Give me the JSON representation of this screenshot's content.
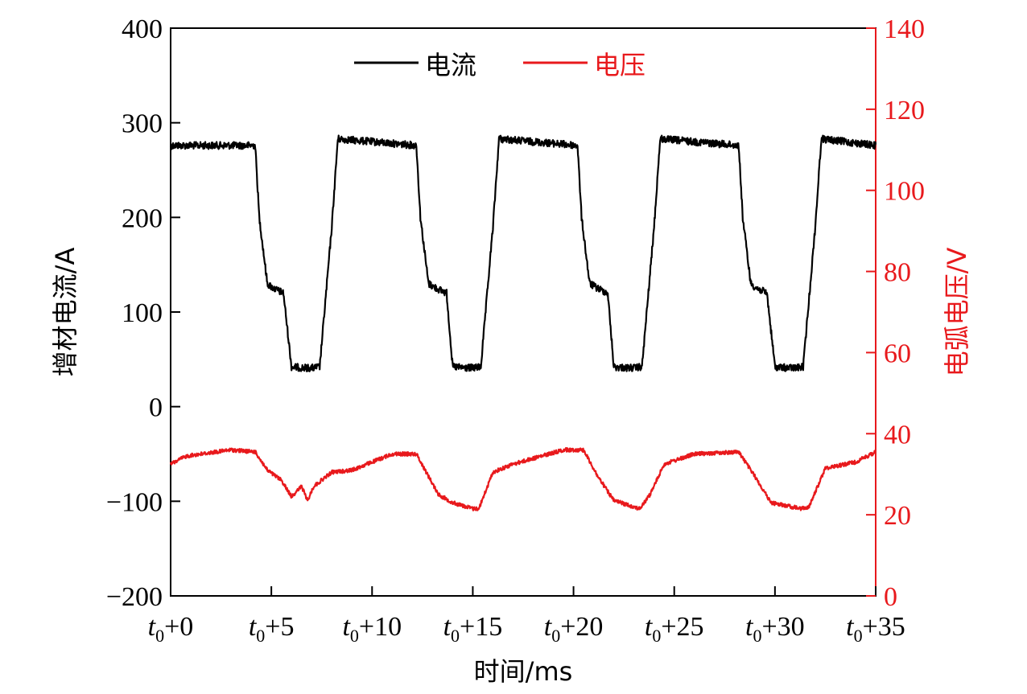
{
  "chart_data": {
    "type": "line",
    "title": "",
    "xlabel": "时间/ms",
    "ylabel_left": "增材电流/A",
    "ylabel_right": "电弧电压/V",
    "xlim": [
      0,
      35
    ],
    "ylim_left": [
      -200,
      400
    ],
    "ylim_right": [
      0,
      140
    ],
    "x_ticks": [
      0,
      5,
      10,
      15,
      20,
      25,
      30,
      35
    ],
    "x_tick_labels": [
      {
        "base": "t",
        "sub": "0",
        "suffix": "+0"
      },
      {
        "base": "t",
        "sub": "0",
        "suffix": "+5"
      },
      {
        "base": "t",
        "sub": "0",
        "suffix": "+10"
      },
      {
        "base": "t",
        "sub": "0",
        "suffix": "+15"
      },
      {
        "base": "t",
        "sub": "0",
        "suffix": "+20"
      },
      {
        "base": "t",
        "sub": "0",
        "suffix": "+25"
      },
      {
        "base": "t",
        "sub": "0",
        "suffix": "+30"
      },
      {
        "base": "t",
        "sub": "0",
        "suffix": "+35"
      }
    ],
    "y_ticks_left": [
      -200,
      -100,
      0,
      100,
      200,
      300,
      400
    ],
    "y_tick_labels_left": [
      "−200",
      "−100",
      "0",
      "100",
      "200",
      "300",
      "400"
    ],
    "y_ticks_right": [
      0,
      20,
      40,
      60,
      80,
      100,
      120,
      140
    ],
    "y_tick_labels_right": [
      "0",
      "20",
      "40",
      "60",
      "80",
      "100",
      "120",
      "140"
    ],
    "grid": false,
    "legend_position": "top-center",
    "series": [
      {
        "name": "电流",
        "axis": "left",
        "color": "#000000",
        "x": [
          0,
          4.2,
          4.4,
          4.8,
          5.1,
          5.6,
          6.0,
          6.6,
          7.1,
          7.4,
          8.0,
          8.3,
          12.2,
          12.4,
          12.8,
          13.2,
          13.7,
          14.0,
          14.6,
          15.1,
          15.4,
          16.0,
          16.3,
          20.2,
          20.4,
          20.8,
          21.2,
          21.7,
          22.0,
          22.6,
          23.1,
          23.4,
          24.0,
          24.3,
          28.2,
          28.4,
          28.8,
          29.1,
          29.6,
          30.0,
          30.6,
          31.1,
          31.4,
          32.0,
          32.3,
          35
        ],
        "y": [
          276,
          276,
          200,
          130,
          125,
          120,
          42,
          41,
          41,
          42,
          190,
          283,
          276,
          200,
          130,
          125,
          120,
          42,
          41,
          41,
          42,
          190,
          283,
          276,
          200,
          130,
          125,
          120,
          42,
          41,
          41,
          42,
          190,
          283,
          276,
          200,
          130,
          125,
          120,
          42,
          41,
          41,
          42,
          190,
          283,
          276
        ]
      },
      {
        "name": "电压",
        "axis": "right",
        "color": "#e8191c",
        "x": [
          0,
          0.8,
          3.0,
          4.2,
          4.8,
          5.5,
          6.0,
          6.5,
          6.8,
          7.1,
          8.0,
          9.0,
          11.0,
          12.2,
          12.8,
          13.3,
          14.0,
          15.0,
          15.3,
          16.0,
          17.0,
          19.5,
          20.5,
          21.2,
          22.0,
          23.3,
          23.8,
          24.5,
          26.0,
          28.2,
          29.0,
          29.8,
          31.3,
          31.7,
          32.5,
          34.0,
          35
        ],
        "y": [
          32.5,
          34.5,
          36.0,
          35.5,
          31.0,
          28.5,
          24.5,
          27.0,
          23.5,
          27.0,
          30.5,
          31.0,
          35.0,
          35.0,
          29.5,
          25.0,
          23.0,
          21.5,
          21.5,
          30.5,
          32.5,
          36.0,
          36.0,
          29.5,
          23.5,
          21.5,
          25.0,
          32.5,
          35.0,
          35.5,
          29.5,
          23.0,
          21.5,
          22.0,
          31.5,
          33.0,
          35.5
        ]
      }
    ]
  }
}
